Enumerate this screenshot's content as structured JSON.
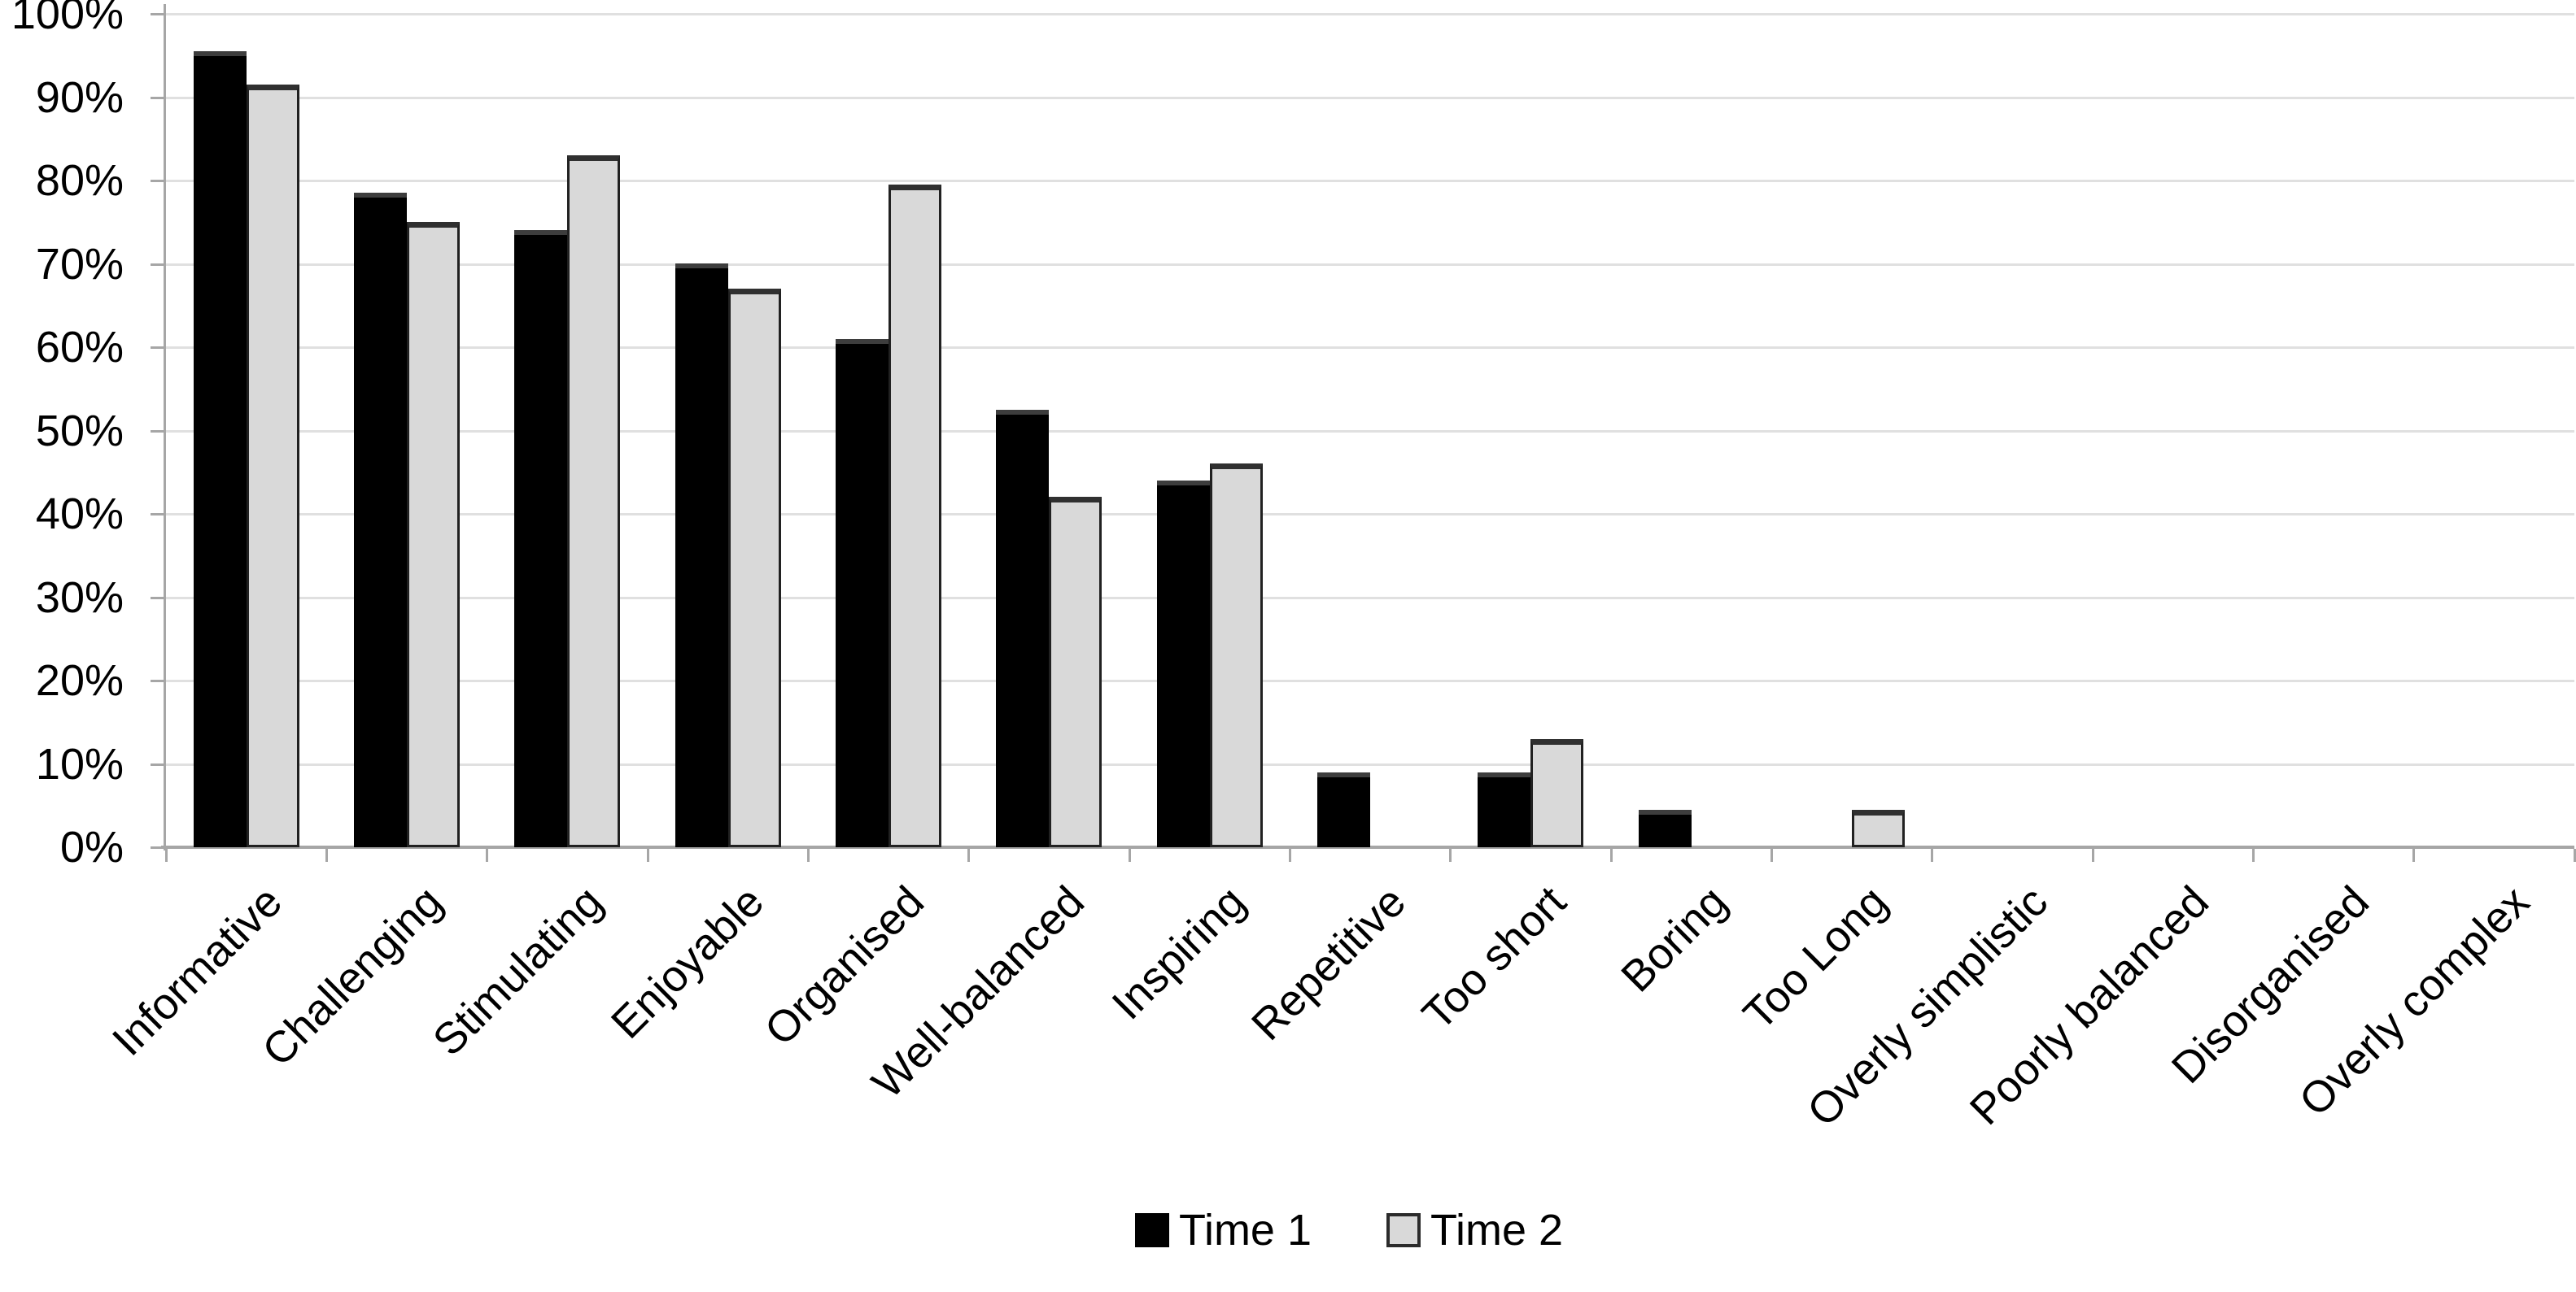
{
  "chart_data": {
    "type": "bar",
    "title": "",
    "xlabel": "",
    "ylabel": "",
    "ylim": [
      0,
      100
    ],
    "ytick_step": 10,
    "ytick_labels": [
      "0%",
      "10%",
      "20%",
      "30%",
      "40%",
      "50%",
      "60%",
      "70%",
      "80%",
      "90%",
      "100%"
    ],
    "grid": true,
    "legend_position": "bottom-center",
    "categories": [
      "Informative",
      "Challenging",
      "Stimulating",
      "Enjoyable",
      "Organised",
      "Well-balanced",
      "Inspiring",
      "Repetitive",
      "Too short",
      "Boring",
      "Too Long",
      "Overly simplistic",
      "Poorly balanced",
      "Disorganised",
      "Overly complex"
    ],
    "series": [
      {
        "name": "Time 1",
        "color": "#000000",
        "values": [
          95.5,
          78.5,
          74,
          70,
          61,
          52.5,
          44,
          9,
          9,
          4.5,
          0,
          0,
          0,
          0,
          0
        ]
      },
      {
        "name": "Time 2",
        "color": "#d9d9d9",
        "values": [
          91.5,
          75,
          83,
          67,
          79.5,
          42,
          46,
          0,
          13,
          0,
          4.5,
          0,
          0,
          0,
          0
        ]
      }
    ]
  },
  "legend": {
    "items": [
      {
        "label": "Time 1"
      },
      {
        "label": "Time 2"
      }
    ]
  },
  "colors": {
    "series1_fill": "#000000",
    "series2_fill": "#d9d9d9",
    "series2_border": "#212121",
    "gridline": "#e0e0e0",
    "axis": "#a6a6a6",
    "text": "#000000",
    "background": "#ffffff"
  }
}
